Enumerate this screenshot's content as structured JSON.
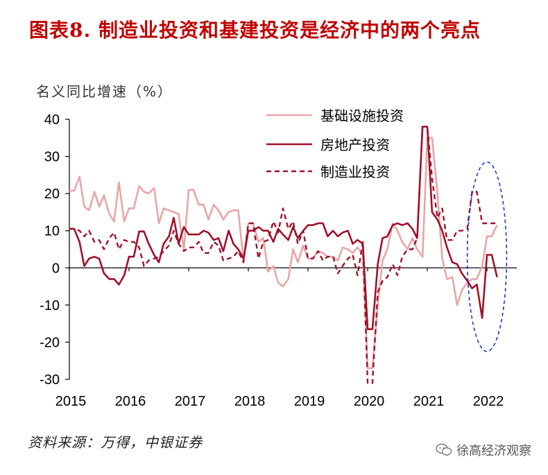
{
  "title": "图表8.  制造业投资和基建投资是经济中的两个亮点",
  "ylabel": "名义同比增速（%）",
  "source": "资料来源：万得，中银证券",
  "watermark": "徐高经济观察",
  "colors": {
    "title": "#c00000",
    "infra": "#eaa5a5",
    "realestate": "#a0102a",
    "manufacturing": "#a0102a",
    "ellipse": "#2233cc"
  },
  "chart_data": {
    "type": "line",
    "ylim": [
      -30,
      40
    ],
    "yticks": [
      40,
      30,
      20,
      10,
      0,
      -10,
      -20,
      -30
    ],
    "xlim": [
      2015.0,
      2022.5
    ],
    "xticks": [
      2015,
      2016,
      2017,
      2018,
      2019,
      2020,
      2021,
      2022
    ],
    "xtick_labels": [
      "2015",
      "2016",
      "2017",
      "2018",
      "2019",
      "2020",
      "2021",
      "2022"
    ],
    "legend": {
      "position": "top-center",
      "entries": [
        "基础设施投资",
        "房地产投资",
        "制造业投资"
      ]
    },
    "series": [
      {
        "name": "基础设施投资",
        "style": "solid-light",
        "x": [
          2015.0,
          2015.08,
          2015.17,
          2015.25,
          2015.33,
          2015.42,
          2015.5,
          2015.58,
          2015.67,
          2015.75,
          2015.83,
          2015.92,
          2016.0,
          2016.08,
          2016.17,
          2016.25,
          2016.33,
          2016.42,
          2016.5,
          2016.58,
          2016.67,
          2016.75,
          2016.83,
          2016.92,
          2017.0,
          2017.08,
          2017.17,
          2017.25,
          2017.33,
          2017.42,
          2017.5,
          2017.58,
          2017.67,
          2017.75,
          2017.83,
          2017.92,
          2018.0,
          2018.08,
          2018.17,
          2018.25,
          2018.33,
          2018.42,
          2018.5,
          2018.58,
          2018.67,
          2018.75,
          2018.83,
          2018.92,
          2019.0,
          2019.08,
          2019.17,
          2019.25,
          2019.33,
          2019.42,
          2019.5,
          2019.58,
          2019.67,
          2019.75,
          2019.83,
          2019.92,
          2020.0,
          2020.08,
          2020.17,
          2020.25,
          2020.33,
          2020.42,
          2020.5,
          2020.58,
          2020.67,
          2020.75,
          2020.83,
          2020.92,
          2021.0,
          2021.08,
          2021.17,
          2021.25,
          2021.33,
          2021.42,
          2021.5,
          2021.58,
          2021.67,
          2021.75,
          2021.83,
          2021.92,
          2022.0,
          2022.08,
          2022.17
        ],
        "values": [
          20.8,
          20.8,
          24.5,
          16.5,
          15.5,
          20.5,
          16.5,
          19.5,
          14.5,
          12.5,
          23.0,
          12.5,
          16.0,
          16.0,
          22.0,
          20.5,
          20.0,
          21.5,
          12.0,
          16.0,
          15.5,
          15.0,
          14.5,
          5.0,
          21.0,
          21.0,
          17.0,
          17.0,
          13.0,
          17.0,
          15.5,
          13.0,
          15.0,
          15.5,
          15.5,
          2.0,
          12.0,
          12.0,
          7.0,
          8.0,
          -1.0,
          0.5,
          -4.0,
          -5.0,
          -3.0,
          5.0,
          1.5,
          6.0,
          2.5,
          2.5,
          4.5,
          4.0,
          3.0,
          3.0,
          2.0,
          5.5,
          5.0,
          4.0,
          5.5,
          3.5,
          -27.0,
          -27.0,
          -10.0,
          2.0,
          5.0,
          12.0,
          10.0,
          7.0,
          5.0,
          8.0,
          5.0,
          3.0,
          35.0,
          35.0,
          20.0,
          2.5,
          -3.0,
          -2.5,
          -10.0,
          -6.0,
          -4.0,
          -3.0,
          -3.0,
          0.5,
          8.5,
          8.5,
          11.5
        ]
      },
      {
        "name": "房地产投资",
        "style": "solid-dark",
        "x": [
          2015.0,
          2015.08,
          2015.17,
          2015.25,
          2015.33,
          2015.42,
          2015.5,
          2015.58,
          2015.67,
          2015.75,
          2015.83,
          2015.92,
          2016.0,
          2016.08,
          2016.17,
          2016.25,
          2016.33,
          2016.42,
          2016.5,
          2016.58,
          2016.67,
          2016.75,
          2016.83,
          2016.92,
          2017.0,
          2017.08,
          2017.17,
          2017.25,
          2017.33,
          2017.42,
          2017.5,
          2017.58,
          2017.67,
          2017.75,
          2017.83,
          2017.92,
          2018.0,
          2018.08,
          2018.17,
          2018.25,
          2018.33,
          2018.42,
          2018.5,
          2018.58,
          2018.67,
          2018.75,
          2018.83,
          2018.92,
          2019.0,
          2019.08,
          2019.17,
          2019.25,
          2019.33,
          2019.42,
          2019.5,
          2019.58,
          2019.67,
          2019.75,
          2019.83,
          2019.92,
          2020.0,
          2020.08,
          2020.17,
          2020.25,
          2020.33,
          2020.42,
          2020.5,
          2020.58,
          2020.67,
          2020.75,
          2020.83,
          2020.92,
          2021.0,
          2021.08,
          2021.17,
          2021.25,
          2021.33,
          2021.42,
          2021.5,
          2021.58,
          2021.67,
          2021.75,
          2021.83,
          2021.92,
          2022.0,
          2022.08,
          2022.17
        ],
        "values": [
          10.5,
          10.5,
          7.0,
          0.5,
          2.5,
          3.0,
          2.5,
          -1.5,
          -3.0,
          -3.0,
          -4.5,
          -2.0,
          3.0,
          3.0,
          9.8,
          9.8,
          6.5,
          3.5,
          1.5,
          6.5,
          8.5,
          13.5,
          6.5,
          11.0,
          9.0,
          9.0,
          9.0,
          10.0,
          9.5,
          7.5,
          8.0,
          4.5,
          10.0,
          6.5,
          5.0,
          2.5,
          10.0,
          10.0,
          11.0,
          10.0,
          10.0,
          7.0,
          10.5,
          9.0,
          7.5,
          11.0,
          8.0,
          10.0,
          11.5,
          11.5,
          12.0,
          12.0,
          8.5,
          10.0,
          8.5,
          9.5,
          10.0,
          6.5,
          7.5,
          6.5,
          -16.5,
          -16.5,
          1.0,
          8.0,
          8.5,
          11.5,
          12.0,
          11.5,
          12.0,
          10.5,
          8.0,
          38.0,
          38.0,
          15.0,
          13.0,
          10.0,
          5.5,
          1.5,
          1.0,
          -1.5,
          -3.5,
          -5.5,
          -4.5,
          -13.5,
          3.5,
          3.5,
          -2.5
        ]
      },
      {
        "name": "制造业投资",
        "style": "dashed-dark",
        "x": [
          2015.0,
          2015.08,
          2015.17,
          2015.25,
          2015.33,
          2015.42,
          2015.5,
          2015.58,
          2015.67,
          2015.75,
          2015.83,
          2015.92,
          2016.0,
          2016.08,
          2016.17,
          2016.25,
          2016.33,
          2016.42,
          2016.5,
          2016.58,
          2016.67,
          2016.75,
          2016.83,
          2016.92,
          2017.0,
          2017.08,
          2017.17,
          2017.25,
          2017.33,
          2017.42,
          2017.5,
          2017.58,
          2017.67,
          2017.75,
          2017.83,
          2017.92,
          2018.0,
          2018.08,
          2018.17,
          2018.25,
          2018.33,
          2018.42,
          2018.5,
          2018.58,
          2018.67,
          2018.75,
          2018.83,
          2018.92,
          2019.0,
          2019.08,
          2019.17,
          2019.25,
          2019.33,
          2019.42,
          2019.5,
          2019.58,
          2019.67,
          2019.75,
          2019.83,
          2019.92,
          2020.0,
          2020.08,
          2020.17,
          2020.25,
          2020.33,
          2020.42,
          2020.5,
          2020.58,
          2020.67,
          2020.75,
          2020.83,
          2020.92,
          2021.0,
          2021.08,
          2021.17,
          2021.25,
          2021.33,
          2021.42,
          2021.5,
          2021.58,
          2021.67,
          2021.75,
          2021.83,
          2021.92,
          2022.0,
          2022.08,
          2022.17
        ],
        "values": [
          10.5,
          10.5,
          10.0,
          8.5,
          10.0,
          7.0,
          7.5,
          5.0,
          8.0,
          9.5,
          5.0,
          7.5,
          7.0,
          7.0,
          5.5,
          0.5,
          2.0,
          2.5,
          3.0,
          4.5,
          6.0,
          10.0,
          6.5,
          4.5,
          5.5,
          5.5,
          7.0,
          4.0,
          4.0,
          7.0,
          6.0,
          2.0,
          2.5,
          3.0,
          4.5,
          1.5,
          12.0,
          12.0,
          2.5,
          7.0,
          7.5,
          12.5,
          9.5,
          16.0,
          10.5,
          12.5,
          6.5,
          10.0,
          2.5,
          2.5,
          4.5,
          2.0,
          3.0,
          3.0,
          -1.5,
          0.5,
          2.5,
          3.5,
          -2.0,
          7.0,
          -31.0,
          -31.0,
          -6.5,
          -3.5,
          -2.5,
          1.0,
          -2.0,
          3.0,
          5.0,
          5.0,
          8.0,
          38.0,
          38.0,
          24.0,
          13.5,
          16.0,
          7.5,
          7.5,
          10.0,
          10.0,
          10.5,
          20.5,
          20.5,
          12.0,
          12.0,
          12.0,
          12.0
        ]
      }
    ],
    "annotations": [
      {
        "type": "ellipse-highlight",
        "x_center": 2022.0,
        "y_center": 3.0,
        "x_halfwidth": 0.33,
        "y_halfwidth": 25.5
      }
    ]
  }
}
